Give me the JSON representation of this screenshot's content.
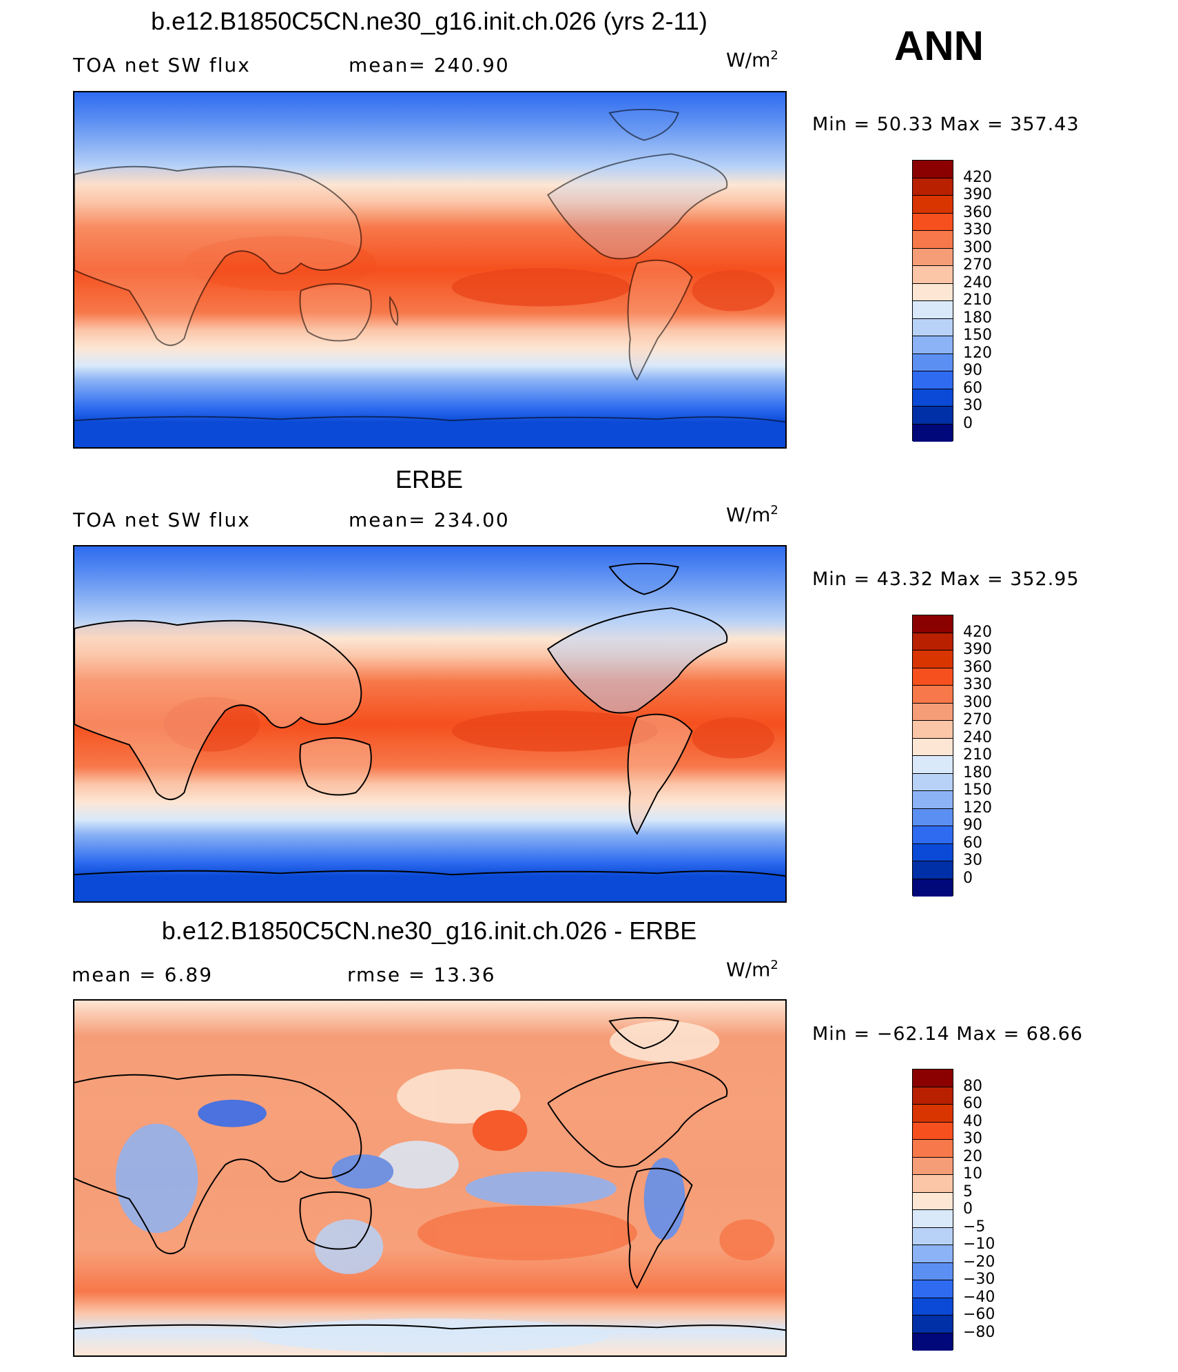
{
  "season": "ANN",
  "panels": [
    {
      "id": "model",
      "title": "b.e12.B1850C5CN.ne30_g16.init.ch.026 (yrs 2-11)",
      "left_label": "TOA net SW flux",
      "stat_label": "mean= 240.90",
      "units_base": "W/m",
      "units_exp": "2",
      "minmax": "Min =   50.33 Max = 357.43"
    },
    {
      "id": "obs",
      "title": "ERBE",
      "left_label": "TOA net SW flux",
      "stat_label": "mean= 234.00",
      "units_base": "W/m",
      "units_exp": "2",
      "minmax": "Min =   43.32 Max = 352.95"
    },
    {
      "id": "diff",
      "title": "b.e12.B1850C5CN.ne30_g16.init.ch.026 - ERBE",
      "left_label": "mean =     6.89",
      "stat_label": "rmse =    13.36",
      "units_base": "W/m",
      "units_exp": "2",
      "minmax": "Min = −62.14 Max =    68.66"
    }
  ],
  "colorbars": {
    "flux": {
      "labels": [
        "420",
        "390",
        "360",
        "330",
        "300",
        "270",
        "240",
        "210",
        "180",
        "150",
        "120",
        "90",
        "60",
        "30",
        "0"
      ],
      "colors": [
        "#8b0000",
        "#b82000",
        "#d93500",
        "#f5501e",
        "#f7784a",
        "#f59d77",
        "#fbc5a8",
        "#fde6d4",
        "#d9e9fa",
        "#b8d2f7",
        "#8cb3f5",
        "#5c8ff2",
        "#2e6bf0",
        "#0a4ad6",
        "#0030a8",
        "#00087a"
      ]
    },
    "diff": {
      "labels": [
        "80",
        "60",
        "40",
        "30",
        "20",
        "10",
        "5",
        "0",
        "−5",
        "−10",
        "−20",
        "−30",
        "−40",
        "−60",
        "−80"
      ],
      "colors": [
        "#8b0000",
        "#b82000",
        "#d93500",
        "#f5501e",
        "#f7784a",
        "#f59d77",
        "#fbc5a8",
        "#fde6d4",
        "#d9e9fa",
        "#b8d2f7",
        "#8cb3f5",
        "#5c8ff2",
        "#2e6bf0",
        "#0a4ad6",
        "#0030a8",
        "#00087a"
      ]
    }
  }
}
